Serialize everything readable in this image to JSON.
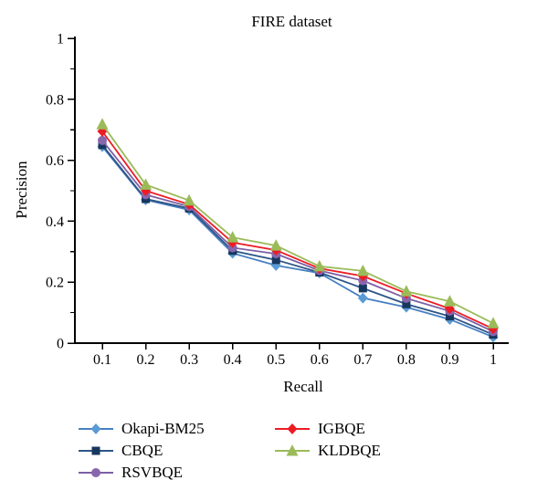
{
  "figure": {
    "title": "FIRE dataset",
    "x_axis_label": "Recall",
    "y_axis_label": "Precision"
  },
  "chart_data": {
    "type": "line",
    "title": "FIRE dataset",
    "xlabel": "Recall",
    "ylabel": "Precision",
    "xlim": [
      0.05,
      1.04
    ],
    "ylim": [
      0,
      1
    ],
    "grid": false,
    "legend_position": "below",
    "x": [
      0.1,
      0.2,
      0.3,
      0.4,
      0.5,
      0.6,
      0.7,
      0.8,
      0.9,
      1.0
    ],
    "x_tick_labels": [
      "0.1",
      "0.2",
      "0.3",
      "0.4",
      "0.5",
      "0.6",
      "0.7",
      "0.8",
      "0.9",
      "1"
    ],
    "y_ticks": [
      0,
      0.2,
      0.4,
      0.6,
      0.8,
      1
    ],
    "y_tick_labels": [
      "0",
      "0.2",
      "0.4",
      "0.6",
      "0.8",
      "1"
    ],
    "y_minor_ticks": [
      0.1,
      0.3,
      0.5,
      0.7,
      0.9
    ],
    "axis_color": "#000000",
    "series": [
      {
        "name": "Okapi-BM25",
        "marker": "diamond",
        "color": "#5b9bd5",
        "line_color": "#4680c2",
        "values": [
          0.645,
          0.47,
          0.437,
          0.295,
          0.255,
          0.23,
          0.148,
          0.118,
          0.078,
          0.02
        ]
      },
      {
        "name": "CBQE",
        "marker": "square",
        "color": "#17375e",
        "line_color": "#2e5586",
        "values": [
          0.65,
          0.473,
          0.442,
          0.303,
          0.273,
          0.232,
          0.18,
          0.128,
          0.088,
          0.028
        ]
      },
      {
        "name": "RSVBQE",
        "marker": "circle",
        "color": "#8866ae",
        "line_color": "#7d5fa5",
        "values": [
          0.665,
          0.487,
          0.448,
          0.313,
          0.293,
          0.238,
          0.205,
          0.147,
          0.105,
          0.038
        ]
      },
      {
        "name": "IGBQE",
        "marker": "diamond",
        "color": "#ed1c24",
        "line_color": "#ed1c24",
        "values": [
          0.695,
          0.5,
          0.455,
          0.33,
          0.305,
          0.245,
          0.22,
          0.163,
          0.113,
          0.047
        ]
      },
      {
        "name": "KLDBQE",
        "marker": "triangle",
        "color": "#9bbb59",
        "line_color": "#9bbb59",
        "values": [
          0.718,
          0.52,
          0.468,
          0.347,
          0.32,
          0.252,
          0.237,
          0.17,
          0.137,
          0.065
        ]
      }
    ]
  }
}
